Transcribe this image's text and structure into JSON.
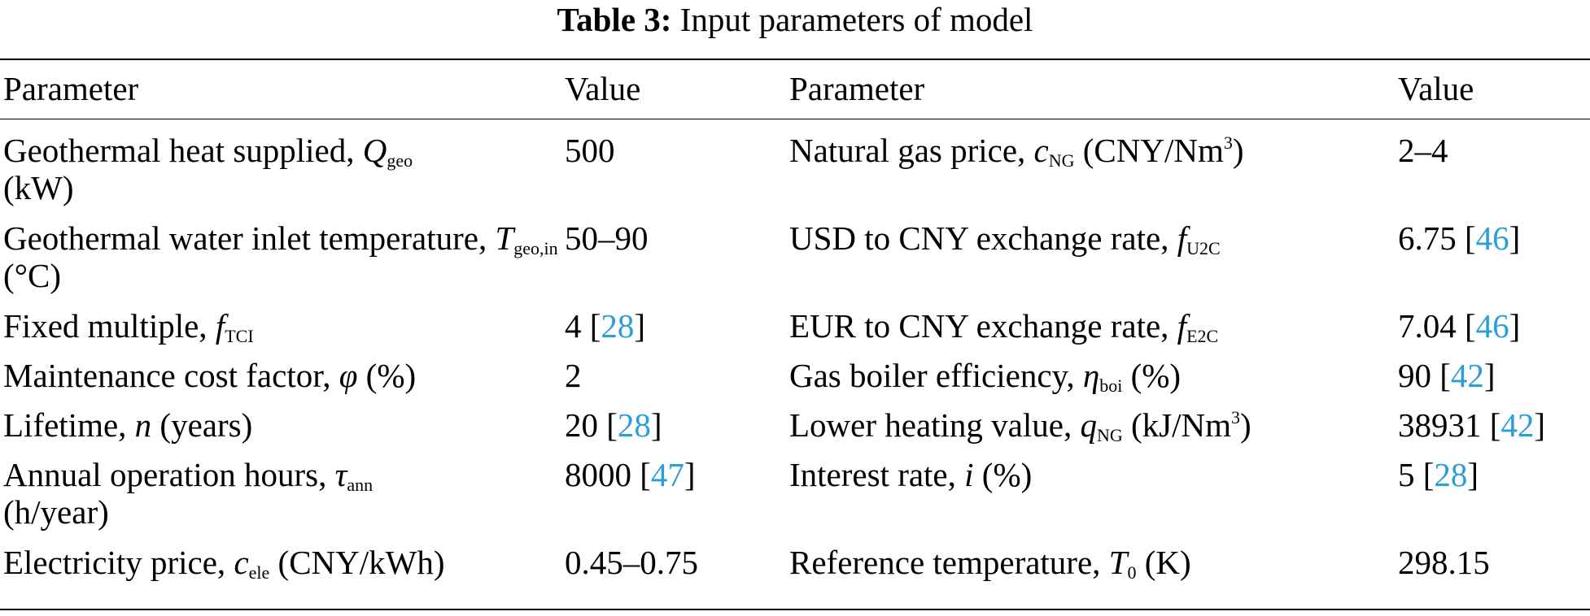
{
  "caption": {
    "label": "Table 3:",
    "text": "Input parameters of model"
  },
  "headers": [
    "Parameter",
    "Value",
    "Parameter",
    "Value"
  ],
  "rows": [
    {
      "left": {
        "pre": "Geothermal heat supplied, ",
        "sym": "Q",
        "sub": "geo",
        "sup": "",
        "post": " (kW)",
        "value": "500",
        "ref": "",
        "refsuffix": ""
      },
      "right": {
        "pre": "Natural gas price, ",
        "sym": "c",
        "sub": "NG",
        "sup": "",
        "post": " (CNY/Nm",
        "post_sup": "3",
        "post_end": ")",
        "value": "2–4",
        "ref": "",
        "refsuffix": ""
      }
    },
    {
      "left": {
        "pre": "Geothermal water inlet temperature, ",
        "sym": "T",
        "sub": "geo,in",
        "post": " (°C)",
        "value": "50–90",
        "ref": "",
        "refsuffix": ""
      },
      "right": {
        "pre": "USD to CNY exchange rate, ",
        "sym": "f",
        "sub": "U2C",
        "post": "",
        "post_sup": "",
        "post_end": "",
        "value": "6.75 [",
        "ref": "46",
        "refsuffix": "]"
      }
    },
    {
      "left": {
        "pre": "Fixed multiple, ",
        "sym": "f",
        "sub": "TCI",
        "post": "",
        "value": "4 [",
        "ref": "28",
        "refsuffix": "]"
      },
      "right": {
        "pre": "EUR to CNY exchange rate, ",
        "sym": "f",
        "sub": "E2C",
        "post": "",
        "post_sup": "",
        "post_end": "",
        "value": "7.04 [",
        "ref": "46",
        "refsuffix": "]"
      }
    },
    {
      "left": {
        "pre": "Maintenance cost factor, ",
        "sym": "φ",
        "sub": "",
        "post": " (%)",
        "value": "2",
        "ref": "",
        "refsuffix": ""
      },
      "right": {
        "pre": "Gas boiler efficiency, ",
        "sym": "η",
        "sub": "boi",
        "post": " (%)",
        "post_sup": "",
        "post_end": "",
        "value": "90 [",
        "ref": "42",
        "refsuffix": "]"
      }
    },
    {
      "left": {
        "pre": "Lifetime, ",
        "sym": "n",
        "sub": "",
        "post": " (years)",
        "value": "20 [",
        "ref": "28",
        "refsuffix": "]"
      },
      "right": {
        "pre": "Lower heating value, ",
        "sym": "q",
        "sub": "NG",
        "post": " (kJ/Nm",
        "post_sup": "3",
        "post_end": ")",
        "value": "38931 [",
        "ref": "42",
        "refsuffix": "]"
      }
    },
    {
      "left": {
        "pre": "Annual operation hours, ",
        "sym": "τ",
        "sub": "ann",
        "post": " (h/year)",
        "value": "8000 [",
        "ref": "47",
        "refsuffix": "]"
      },
      "right": {
        "pre": "Interest rate, ",
        "sym": "i",
        "sub": "",
        "post": " (%)",
        "post_sup": "",
        "post_end": "",
        "value": "5 [",
        "ref": "28",
        "refsuffix": "]"
      }
    },
    {
      "left": {
        "pre": "Electricity price, ",
        "sym": "c",
        "sub": "ele",
        "post": " (CNY/kWh)",
        "value": "0.45–0.75",
        "ref": "",
        "refsuffix": ""
      },
      "right": {
        "pre": "Reference temperature, ",
        "sym": "T",
        "sub": "0",
        "post": " (K)",
        "post_sup": "",
        "post_end": "",
        "value": "298.15",
        "ref": "",
        "refsuffix": ""
      }
    }
  ]
}
